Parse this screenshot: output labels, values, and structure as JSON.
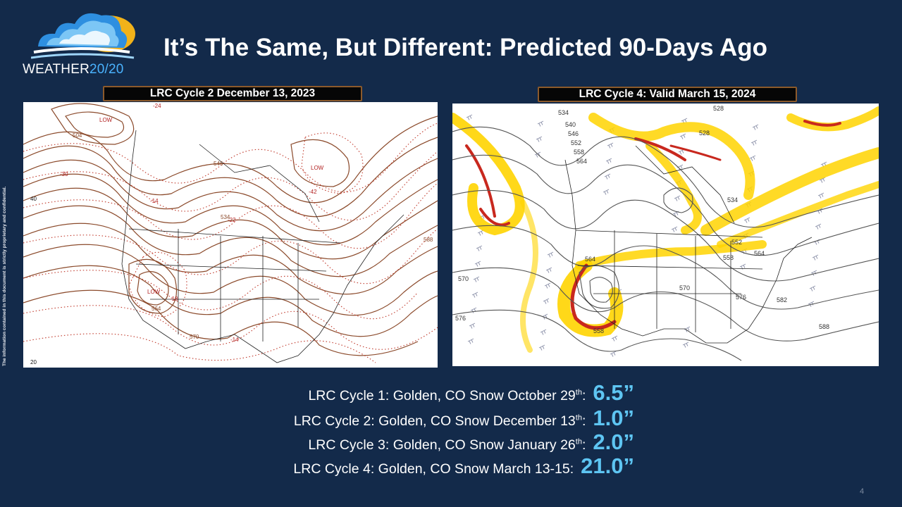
{
  "logo": {
    "brand_word": "WEATHER",
    "brand_number": "20/20",
    "icon": "cloud-sun-logo-icon"
  },
  "slide": {
    "title": "It’s The Same, But Different: Predicted 90-Days Ago",
    "side_note": "The information contained in this document is strictly proprietary and confidential.",
    "page_number": "4"
  },
  "maps": {
    "left": {
      "label": "LRC Cycle 2 December 13, 2023",
      "contour_labels": [
        "LOW",
        "LOW",
        "LOW",
        "504",
        "-30",
        "40",
        "20",
        "-24",
        "-22",
        "-14",
        "-42",
        "588",
        "570",
        "-18",
        "-14",
        "564",
        "534",
        "546"
      ]
    },
    "right": {
      "label": "LRC Cycle 4: Valid March 15, 2024",
      "contour_labels": [
        "534",
        "540",
        "546",
        "552",
        "558",
        "564",
        "528",
        "570",
        "576",
        "552",
        "558",
        "564",
        "570",
        "576",
        "582",
        "588",
        "564",
        "558",
        "534",
        "528"
      ]
    }
  },
  "snow_reports": [
    {
      "label": "LRC Cycle 1:  Golden, CO Snow October 29",
      "sup": "th",
      "suffix": ":",
      "amount": "6.5”"
    },
    {
      "label": "LRC Cycle 2:  Golden, CO Snow December 13",
      "sup": "th",
      "suffix": ":",
      "amount": "1.0”"
    },
    {
      "label": "LRC Cycle 3:  Golden, CO Snow January 26",
      "sup": "th",
      "suffix": ":",
      "amount": "2.0”"
    },
    {
      "label": "LRC Cycle 4:  Golden, CO Snow March 13-15:",
      "sup": "",
      "suffix": "",
      "amount": "21.0”"
    }
  ],
  "colors": {
    "background": "#132a4a",
    "accent_amount": "#5ec5f2",
    "label_border": "#8c5a2b",
    "contour_brown": "#8b4a2b",
    "contour_red": "#c0392b",
    "jet_yellow": "#ffd400",
    "jet_red": "#c8281e"
  }
}
